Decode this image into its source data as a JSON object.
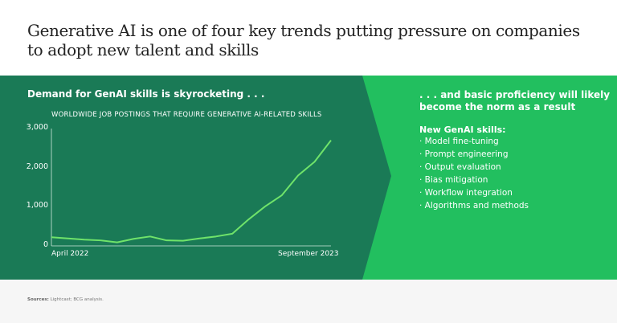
{
  "title": "Generative AI is one of four key trends putting pressure on companies to adopt new talent and skills",
  "left": {
    "heading": "Demand for GenAI skills is skyrocketing . . ."
  },
  "right": {
    "heading": ". . . and basic proficiency will likely become the norm as a result",
    "skills_label": "New GenAI skills:",
    "skills": [
      "· Model fine-tuning",
      "· Prompt engineering",
      "· Output evaluation",
      "· Bias mitigation",
      "· Workflow integration",
      "· Algorithms and methods"
    ]
  },
  "sources": {
    "label": "Sources:",
    "text": " Lightcast; BCG analysis."
  },
  "colors": {
    "dark": "#1a7a56",
    "light": "#22bf5f",
    "line": "#6fe36a"
  },
  "chart_data": {
    "type": "line",
    "title": "WORLDWIDE JOB POSTINGS THAT REQUIRE GENERATIVE AI-RELATED SKILLS",
    "x_labels": {
      "first": "April 2022",
      "last": "September 2023"
    },
    "ylim": [
      0,
      3000
    ],
    "yticks": [
      0,
      1000,
      2000,
      3000
    ],
    "ytick_labels": [
      "0",
      "1,000",
      "2,000",
      "3,000"
    ],
    "series": [
      {
        "name": "Job postings",
        "values": [
          220,
          190,
          160,
          140,
          90,
          180,
          240,
          140,
          130,
          190,
          240,
          310,
          680,
          1010,
          1290,
          1800,
          2150,
          2700
        ]
      }
    ]
  }
}
